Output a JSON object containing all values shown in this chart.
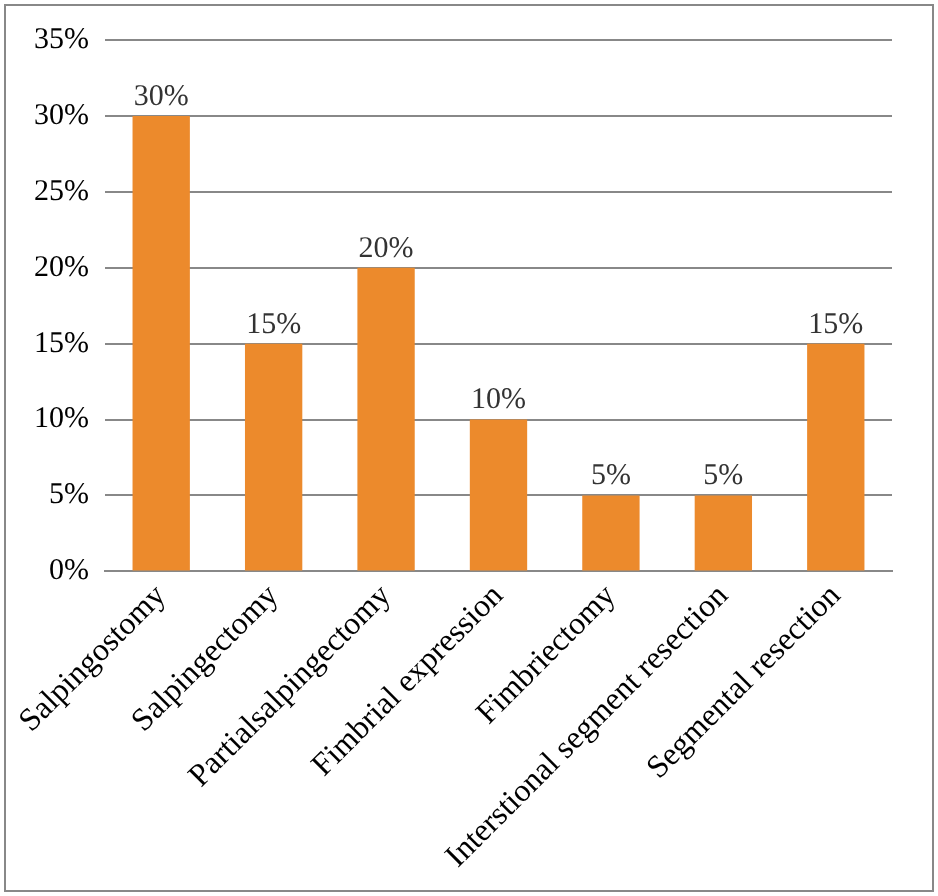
{
  "chart_data": {
    "type": "bar",
    "categories": [
      "Salpingostomy",
      "Salpingectomy",
      "Partialsalpingectomy",
      "Fimbrial expression",
      "Fimbriectomy",
      "Interstional segment resection",
      "Segmental resection"
    ],
    "values": [
      30,
      15,
      20,
      10,
      5,
      5,
      15
    ],
    "value_labels": [
      "30%",
      "15%",
      "20%",
      "10%",
      "5%",
      "5%",
      "15%"
    ],
    "color": "#ec8a2c",
    "ylim": [
      0,
      35
    ],
    "yticks": [
      {
        "value": 0,
        "label": "0%"
      },
      {
        "value": 5,
        "label": "5%"
      },
      {
        "value": 10,
        "label": "10%"
      },
      {
        "value": 15,
        "label": "15%"
      },
      {
        "value": 20,
        "label": "20%"
      },
      {
        "value": 25,
        "label": "25%"
      },
      {
        "value": 30,
        "label": "30%"
      },
      {
        "value": 35,
        "label": "35%"
      }
    ],
    "grid": "y"
  }
}
